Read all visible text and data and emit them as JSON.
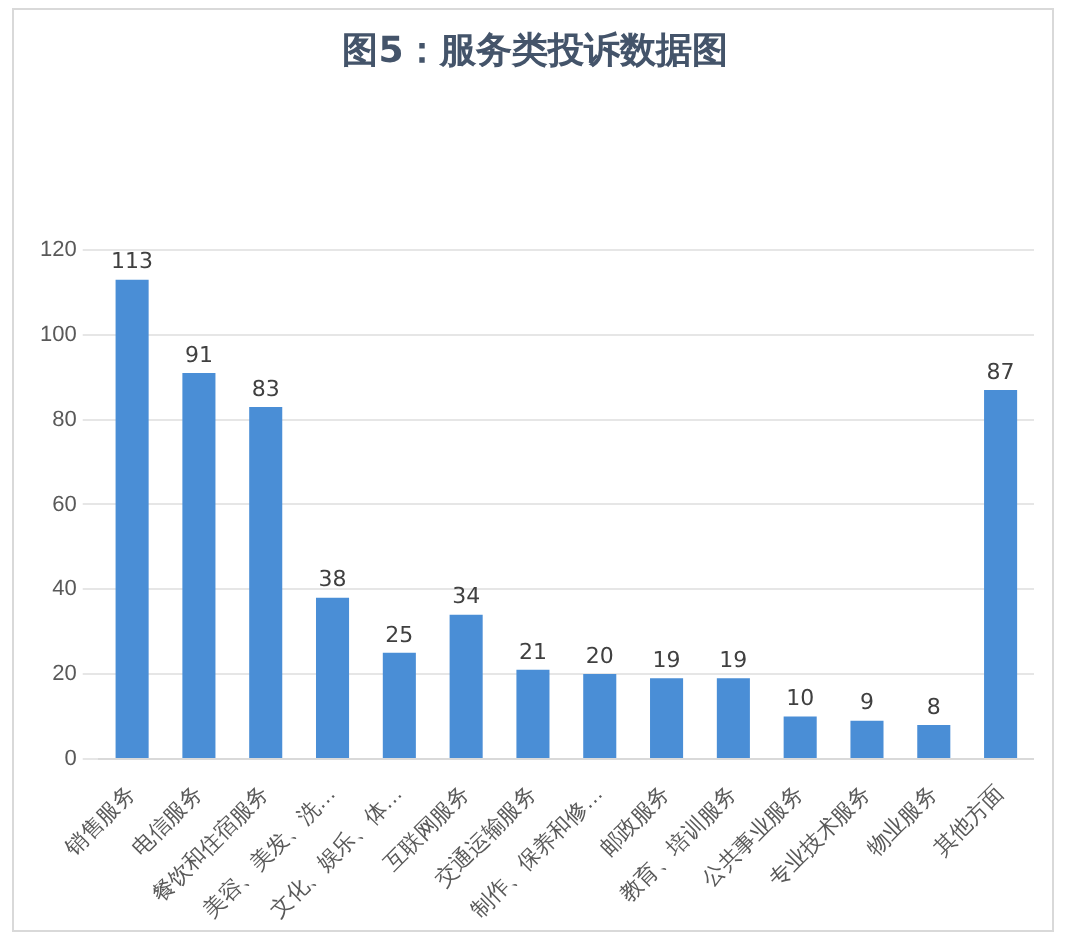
{
  "chart_data": {
    "type": "bar",
    "title": "图5：服务类投诉数据图",
    "categories": [
      "销售服务",
      "电信服务",
      "餐饮和住宿服务",
      "美容、美发、洗…",
      "文化、娱乐、体…",
      "互联网服务",
      "交通运输服务",
      "制作、保养和修…",
      "邮政服务",
      "教育、培训服务",
      "公共事业服务",
      "专业技术服务",
      "物业服务",
      "其他方面"
    ],
    "values": [
      113,
      91,
      83,
      38,
      25,
      34,
      21,
      20,
      19,
      19,
      10,
      9,
      8,
      87
    ],
    "color": "#4a8ed6",
    "ylim": [
      0,
      120
    ],
    "yticks": [
      0,
      20,
      40,
      60,
      80,
      100,
      120
    ],
    "grid": "y",
    "data_labels": true,
    "legend": false
  }
}
